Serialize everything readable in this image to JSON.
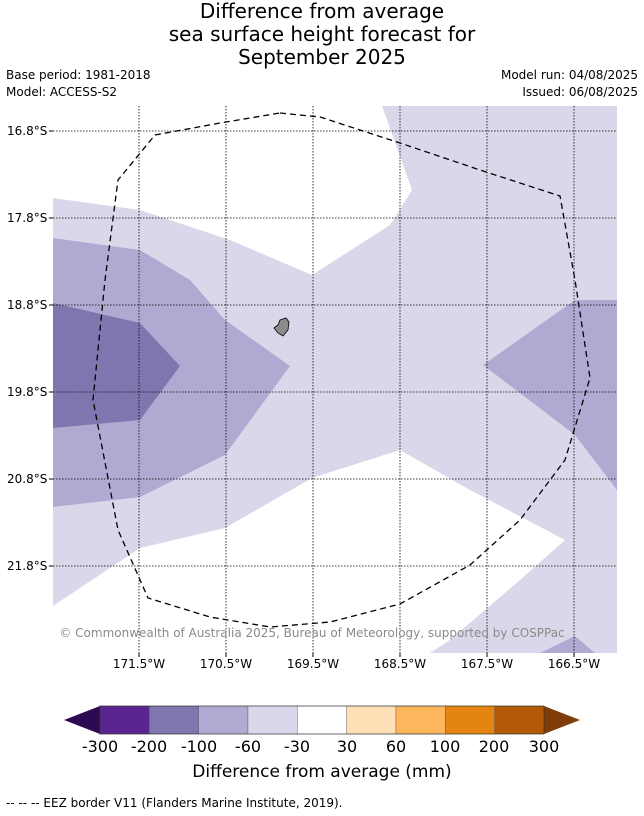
{
  "title": {
    "line1": "Difference from average",
    "line2": "sea surface height forecast for",
    "line3": "September 2025"
  },
  "meta": {
    "base_period": "Base period: 1981-2018",
    "model": "Model: ACCESS-S2",
    "model_run": "Model run: 04/08/2025",
    "issued": "Issued: 06/08/2025"
  },
  "map": {
    "lat_labels": [
      "16.8°S",
      "17.8°S",
      "18.8°S",
      "19.8°S",
      "20.8°S",
      "21.8°S"
    ],
    "lon_labels": [
      "171.5°W",
      "170.5°W",
      "169.5°W",
      "168.5°W",
      "167.5°W",
      "166.5°W"
    ],
    "copyright": "© Commonwealth of Australia 2025, Bureau of Meteorology, supported by COSPPac",
    "colors": {
      "light_purple": "#d8d8ea",
      "mid_purple": "#b0aad2",
      "dark_purple": "#8075ae",
      "land": "#8c8c8c"
    }
  },
  "colorbar": {
    "ticks": [
      "-300",
      "-200",
      "-100",
      "-60",
      "-30",
      "30",
      "60",
      "100",
      "200",
      "300"
    ],
    "colors": [
      "#2e0a52",
      "#5b2590",
      "#8075ae",
      "#b0aad2",
      "#d8d8ea",
      "#ffffff",
      "#ffdfb5",
      "#fcb75d",
      "#e38510",
      "#b35806",
      "#7f3b08"
    ],
    "label": "Difference from average (mm)"
  },
  "eez_note": "--  --  -- EEZ border V11 (Flanders Marine Institute, 2019)."
}
